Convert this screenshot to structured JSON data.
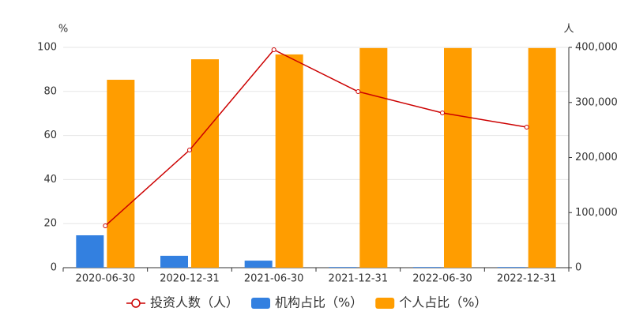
{
  "chart_data": {
    "type": "bar-line",
    "y_label": "%",
    "y2_label": "人",
    "categories": [
      "2020-06-30",
      "2020-12-31",
      "2021-06-30",
      "2021-12-31",
      "2022-06-30",
      "2022-12-31"
    ],
    "series": [
      {
        "name": "投资人数（人）",
        "type": "line",
        "axis": "y2",
        "color": "#cc0000",
        "values": [
          76000,
          213600,
          395700,
          319700,
          281000,
          255200
        ]
      },
      {
        "name": "机构占比（%）",
        "type": "bar",
        "color": "#3380e0",
        "values": [
          14.7,
          5.4,
          3.2,
          0.3,
          0.3,
          0.3
        ]
      },
      {
        "name": "个人占比（%）",
        "type": "bar",
        "color": "#ff9d00",
        "values": [
          85.3,
          94.6,
          96.8,
          99.7,
          99.7,
          99.7
        ]
      }
    ],
    "ylim": [
      0,
      100
    ],
    "yticks": [
      0,
      20,
      40,
      60,
      80,
      100
    ],
    "y2lim": [
      0,
      400000
    ],
    "y2ticks": [
      0,
      {
        "value": 100000,
        "label": "100,000"
      },
      {
        "value": 200000,
        "label": "200,000"
      },
      {
        "value": 300000,
        "label": "300,000"
      },
      {
        "value": 400000,
        "label": "400,000"
      }
    ],
    "grid": true
  }
}
